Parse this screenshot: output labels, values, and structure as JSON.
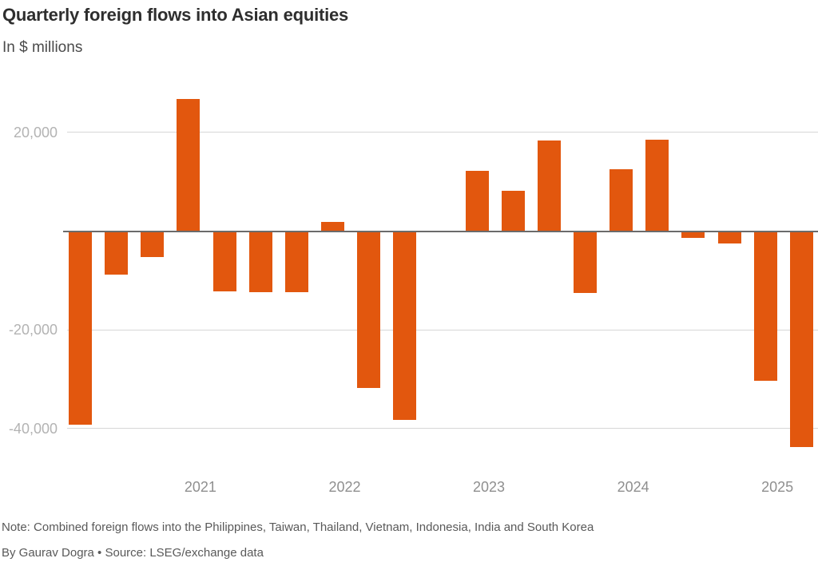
{
  "header": {
    "title": "Quarterly foreign flows into Asian equities",
    "subtitle": "In $ millions"
  },
  "footer": {
    "note": "Note: Combined foreign flows into the Philippines, Taiwan, Thailand, Vietnam, Indonesia, India and South Korea",
    "byline": "By Gaurav Dogra • Source: LSEG/exchange data"
  },
  "colors": {
    "bar": "#e2570e",
    "zero_line": "#6b6b6b",
    "gridline": "#d6d6d6",
    "y_tick_label": "#b3b3b3",
    "x_tick_label": "#8f8f8f"
  },
  "chart_data": {
    "type": "bar",
    "title": "Quarterly foreign flows into Asian equities",
    "subtitle": "In $ millions",
    "unit": "$ millions",
    "x": [
      "2020 Q2",
      "2020 Q3",
      "2020 Q4",
      "2021 Q1",
      "2021 Q2",
      "2021 Q3",
      "2021 Q4",
      "2022 Q1",
      "2022 Q2",
      "2022 Q3",
      "2022 Q4",
      "2023 Q1",
      "2023 Q2",
      "2023 Q3",
      "2023 Q4",
      "2024 Q1",
      "2024 Q2",
      "2024 Q3",
      "2024 Q4",
      "2025 Q1",
      "2025 Q2"
    ],
    "values": [
      -39200,
      -8800,
      -5300,
      26800,
      -12200,
      -12400,
      -12300,
      1800,
      -31700,
      -38200,
      0,
      12200,
      8200,
      18300,
      -12600,
      12600,
      18500,
      -1300,
      -2500,
      -30300,
      -43800
    ],
    "y_ticks": [
      {
        "value": 20000,
        "label": "20,000"
      },
      {
        "value": -20000,
        "label": "-20,000"
      },
      {
        "value": -40000,
        "label": "-40,000"
      }
    ],
    "x_ticks": [
      {
        "label": "2021",
        "at": "2021 Q1"
      },
      {
        "label": "2022",
        "at": "2022 Q1"
      },
      {
        "label": "2023",
        "at": "2023 Q1"
      },
      {
        "label": "2024",
        "at": "2024 Q1"
      },
      {
        "label": "2025",
        "at": "2025 Q1"
      }
    ],
    "ylim": [
      -46000,
      30000
    ],
    "grid": "horizontal",
    "legend": "none",
    "bar_color": "#e2570e"
  }
}
